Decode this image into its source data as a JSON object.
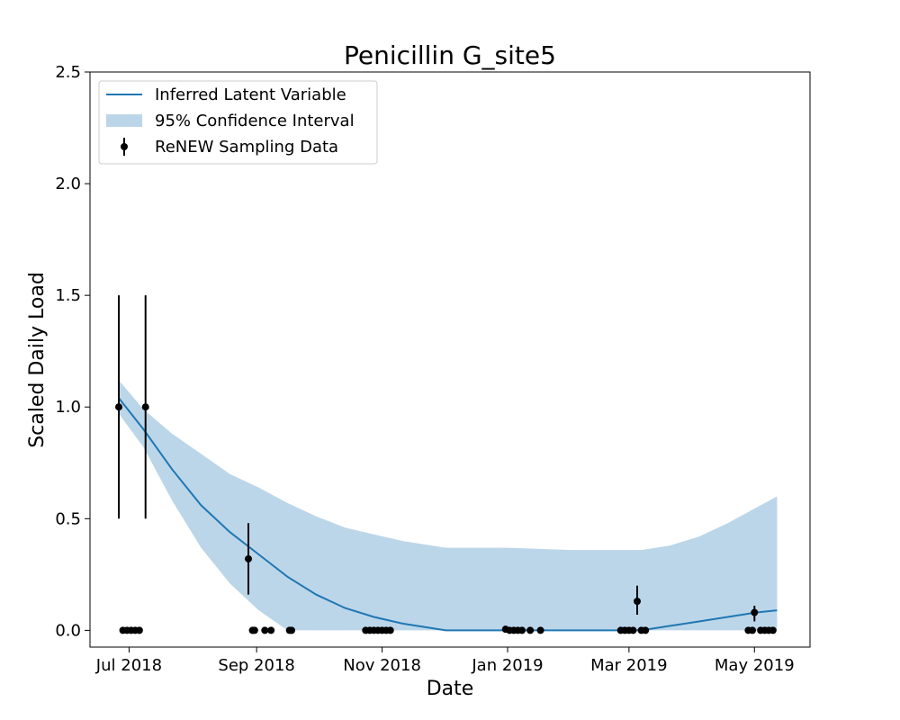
{
  "chart_data": {
    "type": "line",
    "title": "Penicillin G_site5",
    "xlabel": "Date",
    "ylabel": "Scaled Daily Load",
    "x_range": [
      "2018-06-12",
      "2019-05-28"
    ],
    "ylim": [
      -0.075,
      2.5
    ],
    "grid": false,
    "legend_position": "top-left",
    "x_ticks": [
      {
        "date": "2018-07-01",
        "label": "Jul 2018"
      },
      {
        "date": "2018-09-01",
        "label": "Sep 2018"
      },
      {
        "date": "2018-11-01",
        "label": "Nov 2018"
      },
      {
        "date": "2019-01-01",
        "label": "Jan 2019"
      },
      {
        "date": "2019-03-01",
        "label": "Mar 2019"
      },
      {
        "date": "2019-05-01",
        "label": "May 2019"
      }
    ],
    "y_ticks": [
      {
        "value": 0.0,
        "label": "0.0"
      },
      {
        "value": 0.5,
        "label": "0.5"
      },
      {
        "value": 1.0,
        "label": "1.0"
      },
      {
        "value": 1.5,
        "label": "1.5"
      },
      {
        "value": 2.0,
        "label": "2.0"
      },
      {
        "value": 2.5,
        "label": "2.5"
      }
    ],
    "legend": {
      "line_label": "Inferred Latent Variable",
      "band_label": "95% Confidence Interval",
      "points_label": "ReNEW Sampling Data"
    },
    "colors": {
      "line": "#1f77b4",
      "band": "#bcd6e9",
      "points": "#000000"
    },
    "latent": [
      {
        "date": "2018-06-26",
        "y": 1.04,
        "lo": 0.97,
        "hi": 1.12
      },
      {
        "date": "2018-07-08",
        "y": 0.9,
        "lo": 0.82,
        "hi": 0.99
      },
      {
        "date": "2018-07-22",
        "y": 0.72,
        "lo": 0.58,
        "hi": 0.88
      },
      {
        "date": "2018-08-05",
        "y": 0.56,
        "lo": 0.37,
        "hi": 0.79
      },
      {
        "date": "2018-08-19",
        "y": 0.44,
        "lo": 0.21,
        "hi": 0.7
      },
      {
        "date": "2018-09-02",
        "y": 0.34,
        "lo": 0.09,
        "hi": 0.64
      },
      {
        "date": "2018-09-16",
        "y": 0.24,
        "lo": 0.0,
        "hi": 0.57
      },
      {
        "date": "2018-09-30",
        "y": 0.16,
        "lo": 0.0,
        "hi": 0.51
      },
      {
        "date": "2018-10-14",
        "y": 0.1,
        "lo": 0.0,
        "hi": 0.46
      },
      {
        "date": "2018-10-28",
        "y": 0.06,
        "lo": 0.0,
        "hi": 0.43
      },
      {
        "date": "2018-11-11",
        "y": 0.03,
        "lo": 0.0,
        "hi": 0.4
      },
      {
        "date": "2018-11-25",
        "y": 0.01,
        "lo": 0.0,
        "hi": 0.38
      },
      {
        "date": "2018-12-02",
        "y": 0.0,
        "lo": 0.0,
        "hi": 0.37
      },
      {
        "date": "2019-01-01",
        "y": 0.0,
        "lo": 0.0,
        "hi": 0.37
      },
      {
        "date": "2019-02-01",
        "y": 0.0,
        "lo": 0.0,
        "hi": 0.36
      },
      {
        "date": "2019-03-07",
        "y": 0.0,
        "lo": 0.0,
        "hi": 0.36
      },
      {
        "date": "2019-03-21",
        "y": 0.02,
        "lo": 0.0,
        "hi": 0.38
      },
      {
        "date": "2019-04-04",
        "y": 0.04,
        "lo": 0.0,
        "hi": 0.42
      },
      {
        "date": "2019-04-18",
        "y": 0.06,
        "lo": 0.0,
        "hi": 0.48
      },
      {
        "date": "2019-05-02",
        "y": 0.08,
        "lo": 0.0,
        "hi": 0.55
      },
      {
        "date": "2019-05-12",
        "y": 0.09,
        "lo": 0.0,
        "hi": 0.6
      }
    ],
    "samples": [
      {
        "date": "2018-06-26",
        "y": 1.0,
        "lo": 0.5,
        "hi": 1.5
      },
      {
        "date": "2018-07-09",
        "y": 1.0,
        "lo": 0.5,
        "hi": 1.5
      },
      {
        "date": "2018-06-28",
        "y": 0.0
      },
      {
        "date": "2018-06-30",
        "y": 0.0
      },
      {
        "date": "2018-07-02",
        "y": 0.0
      },
      {
        "date": "2018-07-04",
        "y": 0.0
      },
      {
        "date": "2018-07-06",
        "y": 0.0
      },
      {
        "date": "2018-08-28",
        "y": 0.32,
        "lo": 0.16,
        "hi": 0.48
      },
      {
        "date": "2018-08-30",
        "y": 0.0
      },
      {
        "date": "2018-08-31",
        "y": 0.0
      },
      {
        "date": "2018-09-05",
        "y": 0.0
      },
      {
        "date": "2018-09-08",
        "y": 0.0
      },
      {
        "date": "2018-09-17",
        "y": 0.0
      },
      {
        "date": "2018-09-18",
        "y": 0.0
      },
      {
        "date": "2018-10-24",
        "y": 0.0
      },
      {
        "date": "2018-10-26",
        "y": 0.0
      },
      {
        "date": "2018-10-28",
        "y": 0.0
      },
      {
        "date": "2018-10-30",
        "y": 0.0
      },
      {
        "date": "2018-11-01",
        "y": 0.0
      },
      {
        "date": "2018-11-03",
        "y": 0.0
      },
      {
        "date": "2018-11-05",
        "y": 0.0
      },
      {
        "date": "2018-12-31",
        "y": 0.005
      },
      {
        "date": "2019-01-02",
        "y": 0.0
      },
      {
        "date": "2019-01-04",
        "y": 0.0
      },
      {
        "date": "2019-01-06",
        "y": 0.0
      },
      {
        "date": "2019-01-08",
        "y": 0.0
      },
      {
        "date": "2019-01-12",
        "y": 0.0
      },
      {
        "date": "2019-01-17",
        "y": 0.0
      },
      {
        "date": "2019-02-25",
        "y": 0.0
      },
      {
        "date": "2019-02-27",
        "y": 0.0
      },
      {
        "date": "2019-03-01",
        "y": 0.0
      },
      {
        "date": "2019-03-03",
        "y": 0.0
      },
      {
        "date": "2019-03-05",
        "y": 0.13,
        "lo": 0.07,
        "hi": 0.2
      },
      {
        "date": "2019-03-07",
        "y": 0.0
      },
      {
        "date": "2019-03-09",
        "y": 0.0
      },
      {
        "date": "2019-04-28",
        "y": 0.0
      },
      {
        "date": "2019-04-30",
        "y": 0.0
      },
      {
        "date": "2019-05-01",
        "y": 0.08,
        "lo": 0.04,
        "hi": 0.11
      },
      {
        "date": "2019-05-04",
        "y": 0.0
      },
      {
        "date": "2019-05-06",
        "y": 0.0
      },
      {
        "date": "2019-05-08",
        "y": 0.0
      },
      {
        "date": "2019-05-10",
        "y": 0.0
      }
    ]
  }
}
